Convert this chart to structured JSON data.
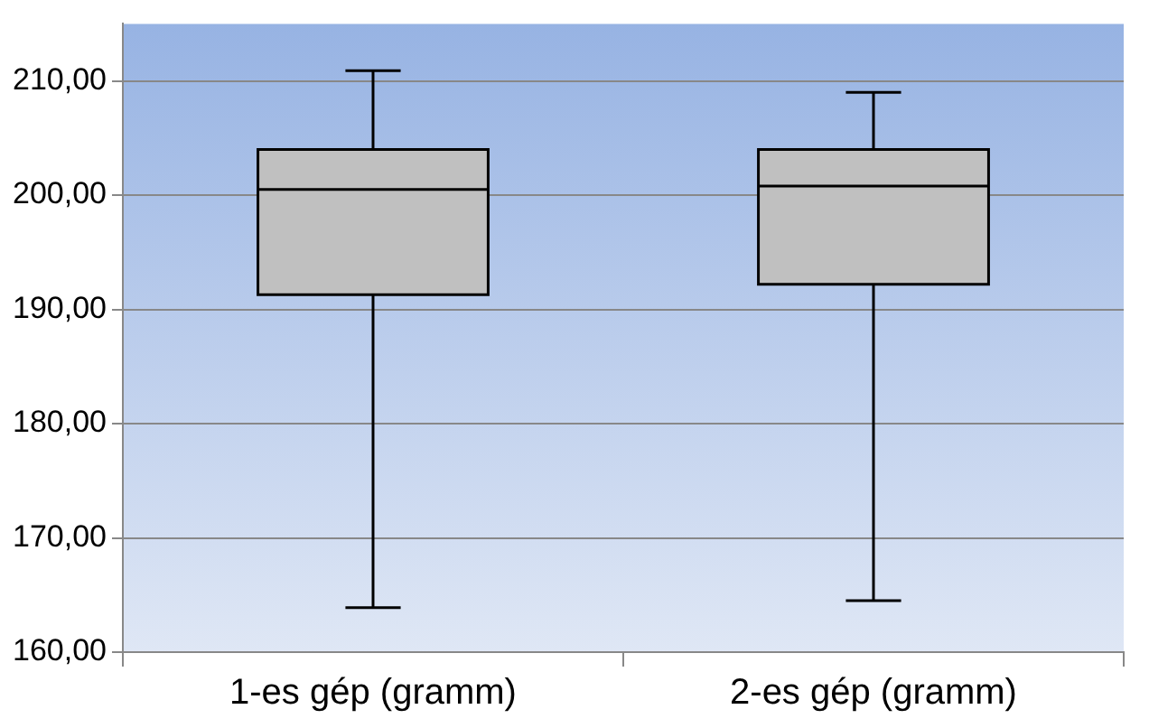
{
  "chart_data": {
    "type": "box",
    "categories": [
      "1-es gép (gramm)",
      "2-es gép (gramm)"
    ],
    "boxes": [
      {
        "low": 163.9,
        "q1": 191.3,
        "median": 200.5,
        "q3": 204.0,
        "high": 210.9
      },
      {
        "low": 164.5,
        "q1": 192.2,
        "median": 200.8,
        "q3": 204.0,
        "high": 209.0
      }
    ],
    "color": "#c0c0c0",
    "ylim": [
      160,
      215
    ],
    "yticks": [
      {
        "value": 160,
        "label": "160,00"
      },
      {
        "value": 170,
        "label": "170,00"
      },
      {
        "value": 180,
        "label": "180,00"
      },
      {
        "value": 190,
        "label": "190,00"
      },
      {
        "value": 200,
        "label": "200,00"
      },
      {
        "value": 210,
        "label": "210,00"
      }
    ],
    "grid": "y",
    "legend": false
  }
}
